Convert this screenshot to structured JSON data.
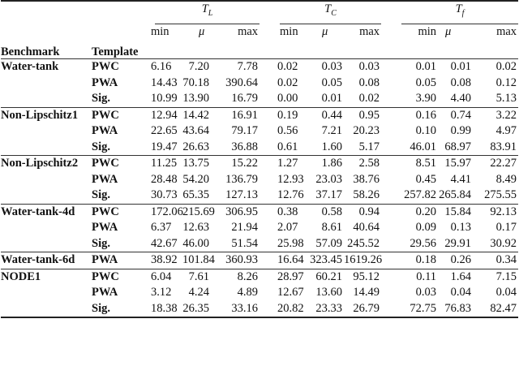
{
  "header": {
    "benchmark": "Benchmark",
    "template": "Template",
    "groups": [
      {
        "base": "T",
        "sub": "L"
      },
      {
        "base": "T",
        "sub": "C"
      },
      {
        "base": "T",
        "sub": "f"
      }
    ],
    "stats": [
      "min",
      "μ",
      "max"
    ]
  },
  "benchmarks": [
    {
      "name": "Water-tank",
      "rows": [
        {
          "template": "PWC",
          "values": [
            "6.16",
            "7.20",
            "7.78",
            "0.02",
            "0.03",
            "0.03",
            "0.01",
            "0.01",
            "0.02"
          ]
        },
        {
          "template": "PWA",
          "values": [
            "14.43",
            "70.18",
            "390.64",
            "0.02",
            "0.05",
            "0.08",
            "0.05",
            "0.08",
            "0.12"
          ]
        },
        {
          "template": "Sig.",
          "values": [
            "10.99",
            "13.90",
            "16.79",
            "0.00",
            "0.01",
            "0.02",
            "3.90",
            "4.40",
            "5.13"
          ]
        }
      ]
    },
    {
      "name": "Non-Lipschitz1",
      "rows": [
        {
          "template": "PWC",
          "values": [
            "12.94",
            "14.42",
            "16.91",
            "0.19",
            "0.44",
            "0.95",
            "0.16",
            "0.74",
            "3.22"
          ]
        },
        {
          "template": "PWA",
          "values": [
            "22.65",
            "43.64",
            "79.17",
            "0.56",
            "7.21",
            "20.23",
            "0.10",
            "0.99",
            "4.97"
          ]
        },
        {
          "template": "Sig.",
          "values": [
            "19.47",
            "26.63",
            "36.88",
            "0.61",
            "1.60",
            "5.17",
            "46.01",
            "68.97",
            "83.91"
          ]
        }
      ]
    },
    {
      "name": "Non-Lipschitz2",
      "rows": [
        {
          "template": "PWC",
          "values": [
            "11.25",
            "13.75",
            "15.22",
            "1.27",
            "1.86",
            "2.58",
            "8.51",
            "15.97",
            "22.27"
          ]
        },
        {
          "template": "PWA",
          "values": [
            "28.48",
            "54.20",
            "136.79",
            "12.93",
            "23.03",
            "38.76",
            "0.45",
            "4.41",
            "8.49"
          ]
        },
        {
          "template": "Sig.",
          "values": [
            "30.73",
            "65.35",
            "127.13",
            "12.76",
            "37.17",
            "58.26",
            "257.82",
            "265.84",
            "275.55"
          ]
        }
      ]
    },
    {
      "name": "Water-tank-4d",
      "rows": [
        {
          "template": "PWC",
          "values": [
            "172.06",
            "215.69",
            "306.95",
            "0.38",
            "0.58",
            "0.94",
            "0.20",
            "15.84",
            "92.13"
          ]
        },
        {
          "template": "PWA",
          "values": [
            "6.37",
            "12.63",
            "21.94",
            "2.07",
            "8.61",
            "40.64",
            "0.09",
            "0.13",
            "0.17"
          ]
        },
        {
          "template": "Sig.",
          "values": [
            "42.67",
            "46.00",
            "51.54",
            "25.98",
            "57.09",
            "245.52",
            "29.56",
            "29.91",
            "30.92"
          ]
        }
      ]
    },
    {
      "name": "Water-tank-6d",
      "rows": [
        {
          "template": "PWA",
          "values": [
            "38.92",
            "101.84",
            "360.93",
            "16.64",
            "323.45",
            "1619.26",
            "0.18",
            "0.26",
            "0.34"
          ]
        }
      ]
    },
    {
      "name": "NODE1",
      "rows": [
        {
          "template": "PWC",
          "values": [
            "6.04",
            "7.61",
            "8.26",
            "28.97",
            "60.21",
            "95.12",
            "0.11",
            "1.64",
            "7.15"
          ]
        },
        {
          "template": "PWA",
          "values": [
            "3.12",
            "4.24",
            "4.89",
            "12.67",
            "13.60",
            "14.49",
            "0.03",
            "0.04",
            "0.04"
          ]
        },
        {
          "template": "Sig.",
          "values": [
            "18.38",
            "26.35",
            "33.16",
            "20.82",
            "23.33",
            "26.79",
            "72.75",
            "76.83",
            "82.47"
          ]
        }
      ]
    }
  ]
}
